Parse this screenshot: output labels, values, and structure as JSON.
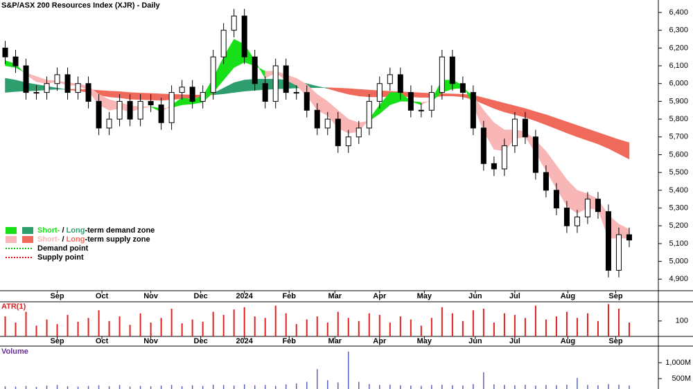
{
  "chart_data": {
    "type": "candlestick",
    "title": "S&P/ASX 200 Resources Index (XJR) - Daily",
    "xlim": [
      -0.5,
      62.8
    ],
    "xticks": [
      {
        "value": 5,
        "label": "Sep"
      },
      {
        "value": 9.3,
        "label": "Oct"
      },
      {
        "value": 14,
        "label": "Nov"
      },
      {
        "value": 18.8,
        "label": "Dec"
      },
      {
        "value": 23,
        "label": "2024"
      },
      {
        "value": 27.3,
        "label": "Feb"
      },
      {
        "value": 31.7,
        "label": "Mar"
      },
      {
        "value": 36,
        "label": "Apr"
      },
      {
        "value": 40.3,
        "label": "May"
      },
      {
        "value": 45.2,
        "label": "Jun"
      },
      {
        "value": 49,
        "label": "Jul"
      },
      {
        "value": 54.1,
        "label": "Aug"
      },
      {
        "value": 58.7,
        "label": "Sep"
      }
    ],
    "ylim": [
      4835,
      6470
    ],
    "yticks": [
      {
        "value": 4900,
        "label": "4,900"
      },
      {
        "value": 5000,
        "label": "5,000"
      },
      {
        "value": 5100,
        "label": "5,100"
      },
      {
        "value": 5200,
        "label": "5,200"
      },
      {
        "value": 5300,
        "label": "5,300"
      },
      {
        "value": 5400,
        "label": "5,400"
      },
      {
        "value": 5500,
        "label": "5,500"
      },
      {
        "value": 5600,
        "label": "5,600"
      },
      {
        "value": 5700,
        "label": "5,700"
      },
      {
        "value": 5800,
        "label": "5,800"
      },
      {
        "value": 5900,
        "label": "5,900"
      },
      {
        "value": 6000,
        "label": "6,000"
      },
      {
        "value": 6100,
        "label": "6,100"
      },
      {
        "value": 6200,
        "label": "6,200"
      },
      {
        "value": 6300,
        "label": "6,300"
      },
      {
        "value": 6400,
        "label": "6,400"
      }
    ],
    "open": [
      6200,
      6150,
      6100,
      5950,
      5950,
      6000,
      6050,
      5950,
      6000,
      5900,
      5750,
      5800,
      5900,
      5800,
      5900,
      5880,
      5780,
      5950,
      5980,
      5900,
      5950,
      6150,
      6300,
      6380,
      6150,
      6000,
      5900,
      6100,
      5950,
      5950,
      5850,
      5750,
      5800,
      5650,
      5700,
      5750,
      5900,
      6000,
      6050,
      5950,
      5850,
      5850,
      5950,
      6150,
      6000,
      5950,
      5750,
      5550,
      5520,
      5650,
      5800,
      5700,
      5500,
      5400,
      5300,
      5200,
      5250,
      5350,
      5280,
      4950,
      5150
    ],
    "high": [
      6240,
      6190,
      6140,
      5990,
      6040,
      6090,
      6090,
      6040,
      6040,
      5940,
      5840,
      5940,
      5940,
      5940,
      5940,
      5920,
      5990,
      6020,
      6020,
      5990,
      6190,
      6340,
      6420,
      6420,
      6190,
      6040,
      6140,
      6140,
      5990,
      5990,
      5890,
      5840,
      5840,
      5740,
      5790,
      5940,
      6040,
      6090,
      6090,
      5990,
      5890,
      5990,
      6190,
      6190,
      6040,
      5990,
      5790,
      5590,
      5690,
      5840,
      5840,
      5740,
      5540,
      5440,
      5340,
      5290,
      5390,
      5390,
      5320,
      5190,
      5190
    ],
    "low": [
      6110,
      6060,
      5910,
      5910,
      5910,
      5960,
      5910,
      5910,
      5860,
      5710,
      5710,
      5760,
      5760,
      5760,
      5840,
      5740,
      5740,
      5910,
      5860,
      5860,
      5910,
      6110,
      6260,
      6110,
      5960,
      5860,
      5860,
      5910,
      5910,
      5810,
      5710,
      5710,
      5610,
      5610,
      5660,
      5710,
      5860,
      5960,
      5910,
      5810,
      5810,
      5810,
      5910,
      5960,
      5910,
      5710,
      5510,
      5480,
      5480,
      5610,
      5660,
      5460,
      5360,
      5260,
      5160,
      5160,
      5210,
      5240,
      4910,
      4910,
      5080
    ],
    "close": [
      6150,
      6100,
      5950,
      5950,
      6000,
      6050,
      5950,
      6000,
      5900,
      5750,
      5800,
      5900,
      5800,
      5900,
      5880,
      5780,
      5950,
      5980,
      5900,
      5950,
      6150,
      6300,
      6380,
      6150,
      6000,
      5900,
      6100,
      5950,
      5950,
      5850,
      5750,
      5800,
      5650,
      5700,
      5750,
      5900,
      6000,
      6050,
      5950,
      5850,
      5850,
      5950,
      6150,
      6000,
      5950,
      5750,
      5550,
      5520,
      5650,
      5800,
      5700,
      5500,
      5400,
      5300,
      5200,
      5250,
      5350,
      5280,
      4950,
      5150,
      5120
    ],
    "short_zone": {
      "fast": [
        6130,
        6110,
        6050,
        6010,
        6000,
        6010,
        5990,
        5990,
        5960,
        5880,
        5850,
        5860,
        5840,
        5860,
        5870,
        5840,
        5880,
        5920,
        5910,
        5930,
        6030,
        6150,
        6250,
        6220,
        6130,
        6030,
        6060,
        6020,
        5990,
        5930,
        5850,
        5820,
        5750,
        5720,
        5730,
        5800,
        5880,
        5950,
        5950,
        5900,
        5880,
        5910,
        6020,
        6020,
        5990,
        5880,
        5730,
        5630,
        5620,
        5690,
        5700,
        5610,
        5510,
        5410,
        5310,
        5270,
        5300,
        5290,
        5130,
        5130,
        5130
      ],
      "slow": [
        6100,
        6090,
        6060,
        6040,
        6020,
        6015,
        6005,
        6000,
        5985,
        5940,
        5910,
        5895,
        5875,
        5870,
        5870,
        5860,
        5865,
        5880,
        5885,
        5895,
        5950,
        6020,
        6090,
        6120,
        6100,
        6070,
        6070,
        6050,
        6030,
        5995,
        5940,
        5900,
        5850,
        5800,
        5780,
        5790,
        5830,
        5880,
        5900,
        5900,
        5895,
        5900,
        5950,
        5970,
        5975,
        5930,
        5850,
        5780,
        5740,
        5740,
        5730,
        5680,
        5620,
        5540,
        5460,
        5400,
        5380,
        5350,
        5260,
        5210,
        5180
      ]
    },
    "long_zone": {
      "fast": [
        6030,
        6020,
        6005,
        5995,
        5985,
        5975,
        5965,
        5960,
        5950,
        5935,
        5925,
        5920,
        5912,
        5910,
        5908,
        5905,
        5910,
        5915,
        5918,
        5925,
        5945,
        5975,
        6005,
        6020,
        6025,
        6025,
        6025,
        6020,
        6012,
        6000,
        5985,
        5972,
        5955,
        5940,
        5930,
        5925,
        5925,
        5928,
        5928,
        5925,
        5922,
        5922,
        5930,
        5930,
        5925,
        5910,
        5885,
        5860,
        5840,
        5825,
        5810,
        5790,
        5768,
        5745,
        5722,
        5700,
        5680,
        5660,
        5635,
        5605,
        5575
      ],
      "slow": [
        5950,
        5955,
        5958,
        5960,
        5965,
        5968,
        5968,
        5968,
        5966,
        5962,
        5958,
        5955,
        5950,
        5947,
        5945,
        5942,
        5940,
        5938,
        5936,
        5935,
        5937,
        5942,
        5950,
        5957,
        5962,
        5966,
        5970,
        5972,
        5975,
        5976,
        5977,
        5977,
        5975,
        5972,
        5968,
        5964,
        5960,
        5957,
        5954,
        5951,
        5948,
        5945,
        5944,
        5942,
        5940,
        5935,
        5920,
        5905,
        5890,
        5875,
        5860,
        5842,
        5825,
        5805,
        5785,
        5765,
        5745,
        5725,
        5705,
        5685,
        5668
      ]
    },
    "colors": {
      "short_demand": "#18e018",
      "long_demand": "#2e9e6e",
      "short_supply": "#f8b6b6",
      "long_supply": "#f06a5c",
      "demand_point": "#10c010",
      "supply_point": "#e01010"
    },
    "legend": [
      {
        "parts": [
          "Short-",
          " / ",
          "Long",
          "-term demand zone"
        ]
      },
      {
        "parts": [
          "Short-",
          " / ",
          "Long",
          "-term supply zone"
        ]
      },
      {
        "parts": [
          "Demand point"
        ]
      },
      {
        "parts": [
          "Supply point"
        ]
      }
    ],
    "atr": {
      "label": "ATR(1)",
      "color": "#e02020",
      "ylim": [
        0,
        225
      ],
      "yticks": [
        100
      ],
      "values": [
        130,
        90,
        160,
        70,
        110,
        80,
        140,
        95,
        120,
        170,
        100,
        130,
        75,
        150,
        90,
        120,
        180,
        85,
        110,
        95,
        160,
        140,
        175,
        190,
        130,
        120,
        200,
        150,
        80,
        110,
        130,
        90,
        160,
        120,
        100,
        150,
        140,
        90,
        130,
        110,
        70,
        120,
        190,
        150,
        100,
        170,
        180,
        90,
        150,
        140,
        120,
        200,
        110,
        130,
        160,
        120,
        150,
        100,
        210,
        180,
        90
      ]
    },
    "volume": {
      "label": "Volume",
      "color": "#5a62b8",
      "ylim": [
        174,
        1522
      ],
      "yticks": [
        {
          "value": 500,
          "label": "500M"
        },
        {
          "value": 1000,
          "label": "1,000M"
        }
      ],
      "values": [
        260,
        250,
        270,
        240,
        280,
        300,
        260,
        250,
        270,
        290,
        260,
        300,
        250,
        270,
        260,
        280,
        300,
        260,
        290,
        270,
        310,
        300,
        280,
        320,
        290,
        300,
        270,
        320,
        350,
        400,
        800,
        450,
        380,
        1350,
        400,
        330,
        300,
        310,
        290,
        280,
        270,
        300,
        310,
        290,
        280,
        330,
        700,
        320,
        300,
        290,
        310,
        280,
        300,
        290,
        310,
        520,
        300,
        290,
        330,
        310,
        280
      ]
    }
  }
}
